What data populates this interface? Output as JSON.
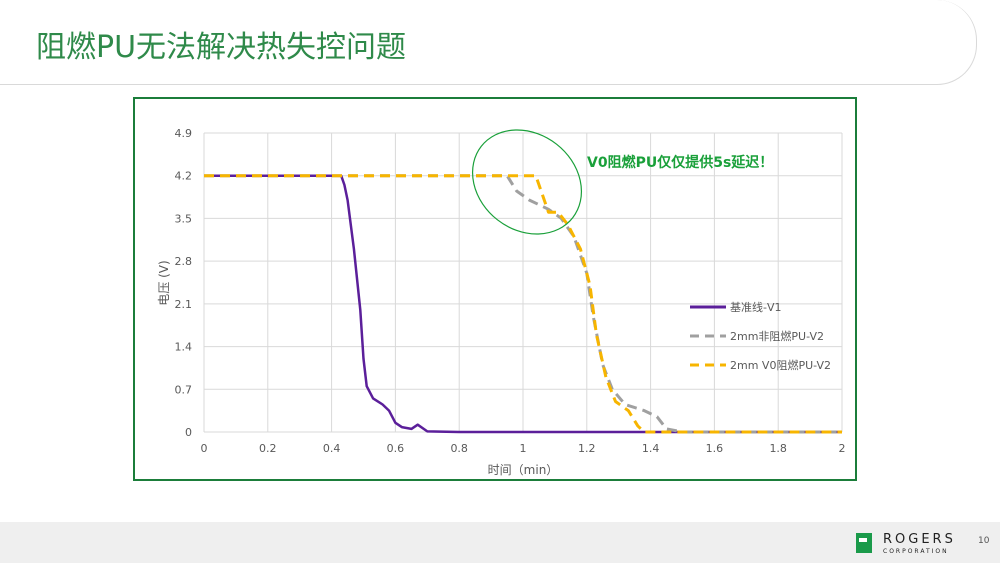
{
  "page": {
    "title": "阻燃PU无法解决热失控问题",
    "page_number": "10",
    "logo_name": "ROGERS",
    "logo_sub": "CORPORATION"
  },
  "colors": {
    "accent": "#2f8a4a",
    "frame": "#1b7d3a",
    "baseline": "#5b1f9a",
    "nonfr": "#a0a0a0",
    "v0": "#f7b500",
    "annotation": "#1aa03a"
  },
  "chart_data": {
    "type": "line",
    "xlabel": "时间（min）",
    "ylabel": "电压 (V)",
    "xlim": [
      0,
      2
    ],
    "ylim": [
      0,
      4.9
    ],
    "xticks": [
      "0",
      "0.2",
      "0.4",
      "0.6",
      "0.8",
      "1",
      "1.2",
      "1.4",
      "1.6",
      "1.8",
      "2"
    ],
    "yticks": [
      "0",
      "0.7",
      "1.4",
      "2.1",
      "2.8",
      "3.5",
      "4.2",
      "4.9"
    ],
    "grid": true,
    "legend_position": "right",
    "annotation": "V0阻燃PU仅仅提供5s延迟！",
    "series": [
      {
        "name": "基准线-V1",
        "style": "solid",
        "x": [
          0,
          0.43,
          0.44,
          0.45,
          0.47,
          0.49,
          0.5,
          0.51,
          0.53,
          0.56,
          0.58,
          0.6,
          0.62,
          0.65,
          0.67,
          0.7,
          0.8,
          2
        ],
        "y": [
          4.2,
          4.2,
          4.05,
          3.8,
          3.0,
          2.0,
          1.2,
          0.75,
          0.55,
          0.45,
          0.35,
          0.15,
          0.08,
          0.05,
          0.12,
          0.01,
          0,
          0
        ]
      },
      {
        "name": "2mm非阻燃PU-V2",
        "style": "dashed",
        "x": [
          0,
          0.95,
          0.98,
          1.02,
          1.08,
          1.12,
          1.16,
          1.2,
          1.22,
          1.25,
          1.28,
          1.32,
          1.38,
          1.42,
          1.45,
          1.5,
          2
        ],
        "y": [
          4.2,
          4.2,
          3.95,
          3.8,
          3.65,
          3.5,
          3.2,
          2.6,
          1.9,
          1.1,
          0.7,
          0.45,
          0.35,
          0.25,
          0.05,
          0,
          0
        ]
      },
      {
        "name": "2mm V0阻燃PU-V2",
        "style": "dashed",
        "x": [
          0,
          1.04,
          1.05,
          1.08,
          1.11,
          1.14,
          1.18,
          1.21,
          1.23,
          1.26,
          1.29,
          1.33,
          1.36,
          1.38,
          2
        ],
        "y": [
          4.2,
          4.2,
          4.05,
          3.6,
          3.6,
          3.4,
          3.0,
          2.4,
          1.6,
          0.9,
          0.5,
          0.35,
          0.1,
          0,
          0
        ]
      }
    ]
  }
}
